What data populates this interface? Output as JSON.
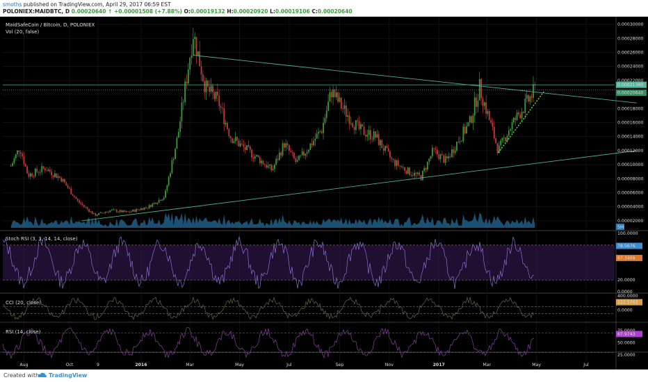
{
  "header": {
    "author": "smoths",
    "published": "published on TradingView.com, April 29, 2017 06:59 EST",
    "symbol": "POLONIEX:MAIDBTC, D",
    "last": "0.00020640",
    "change": "↑ +0.00001508 (+7.88%)",
    "o_label": "O:",
    "o": "0.00019132",
    "h_label": "H:",
    "h": "0.00020920",
    "l_label": "L:",
    "l": "0.00019106",
    "c_label": "C:",
    "c": "0.00020640"
  },
  "footer": {
    "created": "Created with",
    "brand": "TradingView"
  },
  "colors": {
    "up": "#3b9b3b",
    "down": "#c23b3b",
    "trend": "#4fb08a",
    "dotted": "#6fe03a",
    "volume": "#1f5f86",
    "rsi_band": "#3b1b5a"
  },
  "chart_data": [
    {
      "type": "candlestick",
      "title": "MaidSafeCoin / Bitcoin, D, POLONIEX",
      "subtitle": "Vol (20, false)",
      "x_ticks": [
        "Aug",
        "Oct",
        "9",
        "2016",
        "Mar",
        "May",
        "Jul",
        "Sep",
        "Nov",
        "2017",
        "Mar",
        "May",
        "Jul"
      ],
      "y_ticks": [
        "0.00030000",
        "0.00028000",
        "0.00026000",
        "0.00024000",
        "0.00022000",
        "0.00020000",
        "0.00018000",
        "0.00016000",
        "0.00014000",
        "0.00012000",
        "0.00010000",
        "0.00008000",
        "0.00006000",
        "0.00004000",
        "0.00002000"
      ],
      "ylim": [
        1e-05,
        0.000305
      ],
      "price_tags": [
        {
          "value": "0.00021380"
        },
        {
          "value": "0.00020640"
        }
      ],
      "volume_tag": "5M",
      "close_path": [
        {
          "x": "2015-07-25",
          "y": 9.8e-05
        },
        {
          "x": "2015-08-05",
          "y": 0.000125
        },
        {
          "x": "2015-08-15",
          "y": 8.5e-05
        },
        {
          "x": "2015-09-05",
          "y": 9.5e-05
        },
        {
          "x": "2015-09-25",
          "y": 8e-05
        },
        {
          "x": "2015-10-15",
          "y": 4.8e-05
        },
        {
          "x": "2015-11-05",
          "y": 2.8e-05
        },
        {
          "x": "2015-11-25",
          "y": 3.5e-05
        },
        {
          "x": "2015-12-15",
          "y": 3.2e-05
        },
        {
          "x": "2016-01-10",
          "y": 4e-05
        },
        {
          "x": "2016-01-30",
          "y": 5.5e-05
        },
        {
          "x": "2016-02-15",
          "y": 0.00014
        },
        {
          "x": "2016-02-28",
          "y": 0.00024
        },
        {
          "x": "2016-03-05",
          "y": 0.000288
        },
        {
          "x": "2016-03-20",
          "y": 0.00021
        },
        {
          "x": "2016-04-05",
          "y": 0.00019
        },
        {
          "x": "2016-04-20",
          "y": 0.00014
        },
        {
          "x": "2016-05-05",
          "y": 0.000125
        },
        {
          "x": "2016-05-25",
          "y": 0.000108
        },
        {
          "x": "2016-06-10",
          "y": 9.2e-05
        },
        {
          "x": "2016-06-25",
          "y": 0.00013
        },
        {
          "x": "2016-07-10",
          "y": 0.000102
        },
        {
          "x": "2016-07-25",
          "y": 0.000125
        },
        {
          "x": "2016-08-10",
          "y": 0.00015
        },
        {
          "x": "2016-08-22",
          "y": 0.000205
        },
        {
          "x": "2016-09-05",
          "y": 0.00018
        },
        {
          "x": "2016-09-25",
          "y": 0.00015
        },
        {
          "x": "2016-10-15",
          "y": 0.00014
        },
        {
          "x": "2016-11-05",
          "y": 0.000105
        },
        {
          "x": "2016-11-25",
          "y": 9e-05
        },
        {
          "x": "2016-12-10",
          "y": 8.2e-05
        },
        {
          "x": "2016-12-25",
          "y": 0.00012
        },
        {
          "x": "2017-01-10",
          "y": 0.000105
        },
        {
          "x": "2017-01-25",
          "y": 0.000135
        },
        {
          "x": "2017-02-08",
          "y": 0.00016
        },
        {
          "x": "2017-02-20",
          "y": 0.00021
        },
        {
          "x": "2017-03-05",
          "y": 0.00016
        },
        {
          "x": "2017-03-15",
          "y": 0.00012
        },
        {
          "x": "2017-03-28",
          "y": 0.00015
        },
        {
          "x": "2017-04-08",
          "y": 0.00017
        },
        {
          "x": "2017-04-20",
          "y": 0.00019
        },
        {
          "x": "2017-04-29",
          "y": 0.0002064
        }
      ],
      "trendlines": [
        {
          "from": {
            "x": "2016-03-05",
            "y": 0.000256
          },
          "to": {
            "x": "2017-09-01",
            "y": 0.000188
          }
        },
        {
          "from": {
            "x": "2015-10-20",
            "y": 2e-05
          },
          "to": {
            "x": "2017-09-01",
            "y": 0.00012
          }
        },
        {
          "from": {
            "x": "2017-03-15",
            "y": 0.000117
          },
          "to": {
            "x": "2017-05-10",
            "y": 0.000204
          },
          "style": "dotted"
        }
      ],
      "hlines": [
        0.0002138,
        0.0002064
      ]
    },
    {
      "type": "line",
      "title": "Stoch RSI (3, 3, 14, 14, close)",
      "y_ticks": [
        "100.0000",
        "20.0000",
        "0.0000"
      ],
      "bands": [
        80,
        20
      ],
      "tags": [
        "78.5676",
        "67.3468"
      ]
    },
    {
      "type": "line",
      "title": "CCI (20, close)",
      "y_ticks": [
        "400.0000",
        "0.0000"
      ],
      "bands": [
        100,
        -100
      ],
      "tags": [
        "222.5763"
      ]
    },
    {
      "type": "line",
      "title": "RSI (14, close)",
      "y_ticks": [
        "75.0000",
        "50.0000",
        "25.0000"
      ],
      "bands": [
        70,
        30
      ],
      "tags": [
        "67.9743"
      ]
    }
  ]
}
